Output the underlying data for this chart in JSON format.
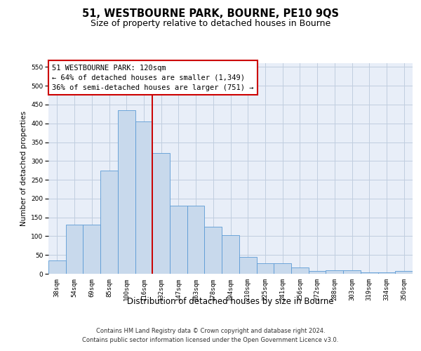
{
  "title": "51, WESTBOURNE PARK, BOURNE, PE10 9QS",
  "subtitle": "Size of property relative to detached houses in Bourne",
  "xlabel": "Distribution of detached houses by size in Bourne",
  "ylabel": "Number of detached properties",
  "categories": [
    "38sqm",
    "54sqm",
    "69sqm",
    "85sqm",
    "100sqm",
    "116sqm",
    "132sqm",
    "147sqm",
    "163sqm",
    "178sqm",
    "194sqm",
    "210sqm",
    "225sqm",
    "241sqm",
    "256sqm",
    "272sqm",
    "288sqm",
    "303sqm",
    "319sqm",
    "334sqm",
    "350sqm"
  ],
  "values": [
    35,
    130,
    130,
    275,
    435,
    405,
    322,
    182,
    182,
    125,
    103,
    45,
    28,
    28,
    16,
    7,
    10,
    10,
    3,
    3,
    7
  ],
  "bar_color": "#c8d9ec",
  "bar_edge_color": "#5b9bd5",
  "bg_color": "#e8eef8",
  "grid_color": "#c0cedf",
  "vline_color": "#cc0000",
  "annotation_line1": "51 WESTBOURNE PARK: 120sqm",
  "annotation_line2": "← 64% of detached houses are smaller (1,349)",
  "annotation_line3": "36% of semi-detached houses are larger (751) →",
  "annotation_box_facecolor": "#ffffff",
  "annotation_box_edgecolor": "#cc0000",
  "ylim": [
    0,
    560
  ],
  "yticks": [
    0,
    50,
    100,
    150,
    200,
    250,
    300,
    350,
    400,
    450,
    500,
    550
  ],
  "footer_line1": "Contains HM Land Registry data © Crown copyright and database right 2024.",
  "footer_line2": "Contains public sector information licensed under the Open Government Licence v3.0.",
  "title_fontsize": 10.5,
  "subtitle_fontsize": 9,
  "xlabel_fontsize": 8.5,
  "ylabel_fontsize": 7.5,
  "tick_fontsize": 6.5,
  "annotation_fontsize": 7.5,
  "footer_fontsize": 6
}
